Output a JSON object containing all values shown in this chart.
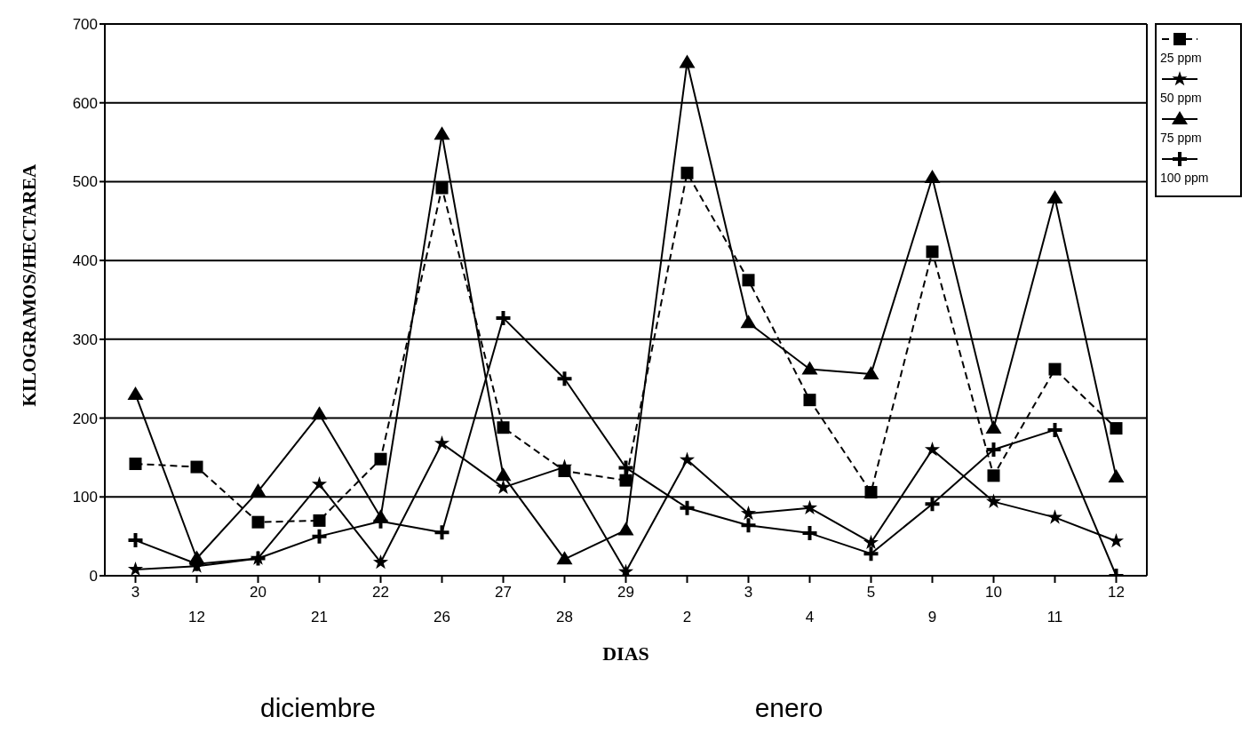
{
  "chart_data": {
    "type": "line",
    "xlabel": "DIAS",
    "ylabel": "KILOGRAMOS/HECTAREA",
    "categories": [
      "3",
      "12",
      "20",
      "21",
      "22",
      "26",
      "27",
      "28",
      "29",
      "2",
      "3",
      "4",
      "5",
      "9",
      "10",
      "11",
      "12"
    ],
    "ylim": [
      0,
      700
    ],
    "yticks": [
      0,
      100,
      200,
      300,
      400,
      500,
      600,
      700
    ],
    "grid": "y",
    "legend": "top right",
    "annotations": [
      "diciembre",
      "enero"
    ],
    "series": [
      {
        "name": "25 ppm",
        "color": "#000000",
        "marker": "square",
        "line_style": "dashed",
        "values": [
          142,
          138,
          68,
          70,
          148,
          492,
          188,
          133,
          121,
          511,
          375,
          223,
          106,
          411,
          127,
          262,
          187
        ]
      },
      {
        "name": "50 ppm",
        "color": "#000000",
        "marker": "star",
        "line_style": "solid",
        "values": [
          8,
          12,
          22,
          116,
          17,
          168,
          112,
          138,
          5,
          147,
          79,
          86,
          42,
          160,
          94,
          74,
          44
        ]
      },
      {
        "name": "75 ppm",
        "color": "#000000",
        "marker": "triangle",
        "line_style": "solid",
        "values": [
          230,
          22,
          107,
          205,
          74,
          560,
          127,
          21,
          58,
          651,
          321,
          262,
          256,
          505,
          187,
          479,
          125
        ]
      },
      {
        "name": "100 ppm",
        "color": "#000000",
        "marker": "cross",
        "line_style": "solid",
        "values": [
          45,
          15,
          22,
          50,
          69,
          55,
          327,
          250,
          137,
          86,
          64,
          54,
          28,
          91,
          160,
          185,
          0
        ]
      }
    ]
  }
}
